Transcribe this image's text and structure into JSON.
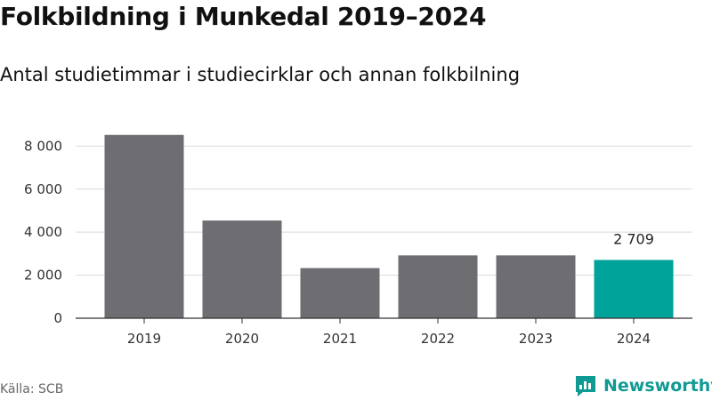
{
  "header": {
    "title": "Folkbildning i Munkedal 2019–2024",
    "subtitle": "Antal studietimmar i studiecirklar och annan folkbilning"
  },
  "footer": {
    "source": "Källa: SCB",
    "brand": "Newsworthy"
  },
  "colors": {
    "bar_default": "#6e6d72",
    "bar_highlight": "#00a39a",
    "brand": "#0f9a94"
  },
  "chart_data": {
    "type": "bar",
    "title": "Folkbildning i Munkedal 2019–2024",
    "subtitle": "Antal studietimmar i studiecirklar och annan folkbilning",
    "xlabel": "",
    "ylabel": "",
    "categories": [
      "2019",
      "2020",
      "2021",
      "2022",
      "2023",
      "2024"
    ],
    "values": [
      8520,
      4540,
      2330,
      2920,
      2920,
      2709
    ],
    "highlight_index": 5,
    "data_labels": [
      {
        "index": 5,
        "text": "2 709"
      }
    ],
    "ylim": [
      0,
      8800
    ],
    "yticks": [
      0,
      2000,
      4000,
      6000,
      8000
    ],
    "ytick_labels": [
      "0",
      "2 000",
      "4 000",
      "6 000",
      "8 000"
    ],
    "grid": true,
    "legend": "none"
  }
}
